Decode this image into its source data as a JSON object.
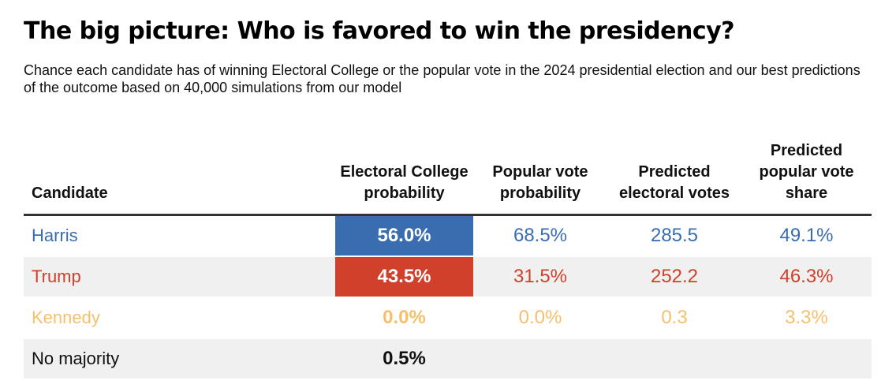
{
  "header": {
    "title": "The big picture: Who is favored to win the presidency?",
    "subtitle": "Chance each candidate has of winning Electoral College or the popular vote in the 2024 presidential election and our best predictions of the outcome based on 40,000 simulations from our model"
  },
  "chart_data": {
    "type": "table",
    "columns": [
      "Candidate",
      "Electoral College probability",
      "Popular vote probability",
      "Predicted electoral votes",
      "Predicted popular vote share"
    ],
    "rows": [
      {
        "candidate": "Harris",
        "ec_prob": "56.0%",
        "pop_prob": "68.5%",
        "ev": "285.5",
        "pop_share": "49.1%",
        "color": "#3a6db0",
        "ec_fill": "#3a6db0"
      },
      {
        "candidate": "Trump",
        "ec_prob": "43.5%",
        "pop_prob": "31.5%",
        "ev": "252.2",
        "pop_share": "46.3%",
        "color": "#d0402a",
        "ec_fill": "#d0402a"
      },
      {
        "candidate": "Kennedy",
        "ec_prob": "0.0%",
        "pop_prob": "0.0%",
        "ev": "0.3",
        "pop_share": "3.3%",
        "color": "#f5c06b",
        "ec_fill": ""
      },
      {
        "candidate": "No majority",
        "ec_prob": "0.5%",
        "pop_prob": "",
        "ev": "",
        "pop_share": "",
        "color": "#111111",
        "ec_fill": ""
      }
    ]
  }
}
